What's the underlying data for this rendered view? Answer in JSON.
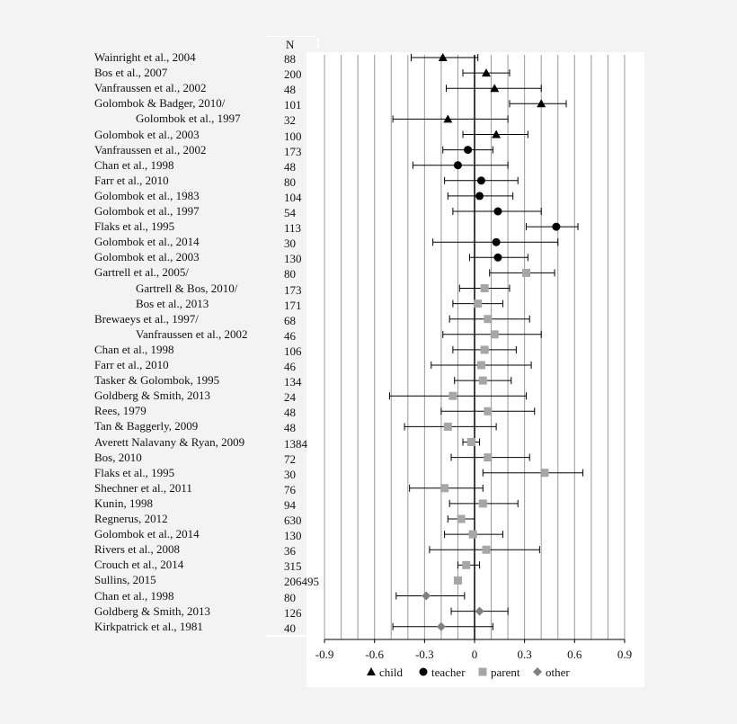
{
  "n_header": "N",
  "chart_data": {
    "type": "scatter",
    "xlim": [
      -0.9,
      0.9
    ],
    "x_ticks": [
      "-0.9",
      "-0.6",
      "-0.3",
      "0",
      "0.3",
      "0.6",
      "0.9"
    ],
    "x_tick_values": [
      -0.9,
      -0.6,
      -0.3,
      0,
      0.3,
      0.6,
      0.9
    ],
    "grid": "vertical",
    "legend_placement": "bottom",
    "series": [
      {
        "name": "child",
        "marker": "triangle",
        "color": "#000000"
      },
      {
        "name": "teacher",
        "marker": "circle",
        "color": "#000000"
      },
      {
        "name": "parent",
        "marker": "square",
        "color": "#a6a6a6"
      },
      {
        "name": "other",
        "marker": "diamond",
        "color": "#808080"
      }
    ],
    "rows": [
      {
        "lines": [
          "Wainright et al., 2004"
        ],
        "n": "88",
        "series": "child",
        "est": -0.19,
        "lo": -0.38,
        "hi": 0.02
      },
      {
        "lines": [
          "Bos et al., 2007"
        ],
        "n": "200",
        "series": "child",
        "est": 0.07,
        "lo": -0.07,
        "hi": 0.21
      },
      {
        "lines": [
          "Vanfraussen et al., 2002"
        ],
        "n": "48",
        "series": "child",
        "est": 0.12,
        "lo": -0.17,
        "hi": 0.4
      },
      {
        "lines": [
          "Golombok & Badger, 2010/"
        ],
        "n": "101",
        "series": "child",
        "est": 0.4,
        "lo": 0.21,
        "hi": 0.55
      },
      {
        "lines": [
          "Golombok et al., 1997"
        ],
        "indent": true,
        "n": "32",
        "series": "child",
        "est": -0.16,
        "lo": -0.49,
        "hi": 0.2
      },
      {
        "lines": [
          "Golombok et al., 2003"
        ],
        "n": "100",
        "series": "child",
        "est": 0.13,
        "lo": -0.07,
        "hi": 0.32
      },
      {
        "lines": [
          "Vanfraussen et al., 2002"
        ],
        "n": "173",
        "series": "teacher",
        "est": -0.04,
        "lo": -0.19,
        "hi": 0.11
      },
      {
        "lines": [
          "Chan et al., 1998"
        ],
        "n": "48",
        "series": "teacher",
        "est": -0.1,
        "lo": -0.37,
        "hi": 0.2
      },
      {
        "lines": [
          "Farr et al., 2010"
        ],
        "n": "80",
        "series": "teacher",
        "est": 0.04,
        "lo": -0.18,
        "hi": 0.26
      },
      {
        "lines": [
          "Golombok et al., 1983"
        ],
        "n": "104",
        "series": "teacher",
        "est": 0.03,
        "lo": -0.16,
        "hi": 0.23
      },
      {
        "lines": [
          "Golombok et al., 1997"
        ],
        "n": "54",
        "series": "teacher",
        "est": 0.14,
        "lo": -0.13,
        "hi": 0.4
      },
      {
        "lines": [
          "Flaks et al., 1995"
        ],
        "n": "113",
        "series": "teacher",
        "est": 0.49,
        "lo": 0.31,
        "hi": 0.62
      },
      {
        "lines": [
          "Golombok et al., 2014"
        ],
        "n": "30",
        "series": "teacher",
        "est": 0.13,
        "lo": -0.25,
        "hi": 0.5
      },
      {
        "lines": [
          "Golombok et al., 2003"
        ],
        "n": "130",
        "series": "teacher",
        "est": 0.14,
        "lo": -0.03,
        "hi": 0.32
      },
      {
        "lines": [
          "Gartrell et al., 2005/"
        ],
        "n": "80",
        "series": "parent",
        "est": 0.31,
        "lo": 0.09,
        "hi": 0.48
      },
      {
        "lines": [
          "Gartrell & Bos, 2010/"
        ],
        "indent": true,
        "n": "173",
        "series": "parent",
        "est": 0.06,
        "lo": -0.09,
        "hi": 0.21
      },
      {
        "lines": [
          "Bos et al., 2013"
        ],
        "indent": true,
        "n": "171",
        "series": "parent",
        "est": 0.02,
        "lo": -0.13,
        "hi": 0.17
      },
      {
        "lines": [
          "Brewaeys et al., 1997/"
        ],
        "n": "68",
        "series": "parent",
        "est": 0.08,
        "lo": -0.15,
        "hi": 0.33
      },
      {
        "lines": [
          "Vanfraussen et al., 2002"
        ],
        "indent": true,
        "n": "46",
        "series": "parent",
        "est": 0.12,
        "lo": -0.19,
        "hi": 0.4
      },
      {
        "lines": [
          "Chan et al., 1998"
        ],
        "n": "106",
        "series": "parent",
        "est": 0.06,
        "lo": -0.13,
        "hi": 0.25
      },
      {
        "lines": [
          "Farr et al., 2010"
        ],
        "n": "46",
        "series": "parent",
        "est": 0.04,
        "lo": -0.26,
        "hi": 0.34
      },
      {
        "lines": [
          "Tasker & Golombok, 1995"
        ],
        "n": "134",
        "series": "parent",
        "est": 0.05,
        "lo": -0.12,
        "hi": 0.22
      },
      {
        "lines": [
          "Goldberg & Smith, 2013"
        ],
        "n": "24",
        "series": "parent",
        "est": -0.13,
        "lo": -0.51,
        "hi": 0.31
      },
      {
        "lines": [
          "Rees, 1979"
        ],
        "n": "48",
        "series": "parent",
        "est": 0.08,
        "lo": -0.2,
        "hi": 0.36
      },
      {
        "lines": [
          "Tan & Baggerly, 2009"
        ],
        "n": "48",
        "series": "parent",
        "est": -0.16,
        "lo": -0.42,
        "hi": 0.13
      },
      {
        "lines": [
          "Averett Nalavany & Ryan, 2009"
        ],
        "n": "1384",
        "series": "parent",
        "est": -0.02,
        "lo": -0.07,
        "hi": 0.03
      },
      {
        "lines": [
          "Bos, 2010"
        ],
        "n": "72",
        "series": "parent",
        "est": 0.08,
        "lo": -0.14,
        "hi": 0.33
      },
      {
        "lines": [
          "Flaks et al., 1995"
        ],
        "n": "30",
        "series": "parent",
        "est": 0.42,
        "lo": 0.05,
        "hi": 0.65
      },
      {
        "lines": [
          "Shechner et al., 2011"
        ],
        "n": "76",
        "series": "parent",
        "est": -0.18,
        "lo": -0.39,
        "hi": 0.05
      },
      {
        "lines": [
          "Kunin, 1998"
        ],
        "n": "94",
        "series": "parent",
        "est": 0.05,
        "lo": -0.15,
        "hi": 0.26
      },
      {
        "lines": [
          "Regnerus, 2012"
        ],
        "n": "630",
        "series": "parent",
        "est": -0.08,
        "lo": -0.16,
        "hi": 0.0
      },
      {
        "lines": [
          "Golombok et al., 2014"
        ],
        "n": "130",
        "series": "parent",
        "est": -0.01,
        "lo": -0.18,
        "hi": 0.17
      },
      {
        "lines": [
          "Rivers et al., 2008"
        ],
        "n": "36",
        "series": "parent",
        "est": 0.07,
        "lo": -0.27,
        "hi": 0.39
      },
      {
        "lines": [
          "Crouch et al., 2014"
        ],
        "n": "315",
        "series": "parent",
        "est": -0.05,
        "lo": -0.1,
        "hi": 0.03
      },
      {
        "lines": [
          "Sullins, 2015"
        ],
        "n": "206495",
        "series": "parent",
        "est": -0.1,
        "lo": -0.11,
        "hi": -0.08
      },
      {
        "lines": [
          "Chan et al., 1998"
        ],
        "n": "80",
        "series": "other",
        "est": -0.29,
        "lo": -0.47,
        "hi": -0.06
      },
      {
        "lines": [
          "Goldberg & Smith, 2013"
        ],
        "n": "126",
        "series": "other",
        "est": 0.03,
        "lo": -0.14,
        "hi": 0.2
      },
      {
        "lines": [
          "Kirkpatrick et al., 1981"
        ],
        "n": "40",
        "series": "other",
        "est": -0.2,
        "lo": -0.49,
        "hi": 0.11
      }
    ]
  }
}
